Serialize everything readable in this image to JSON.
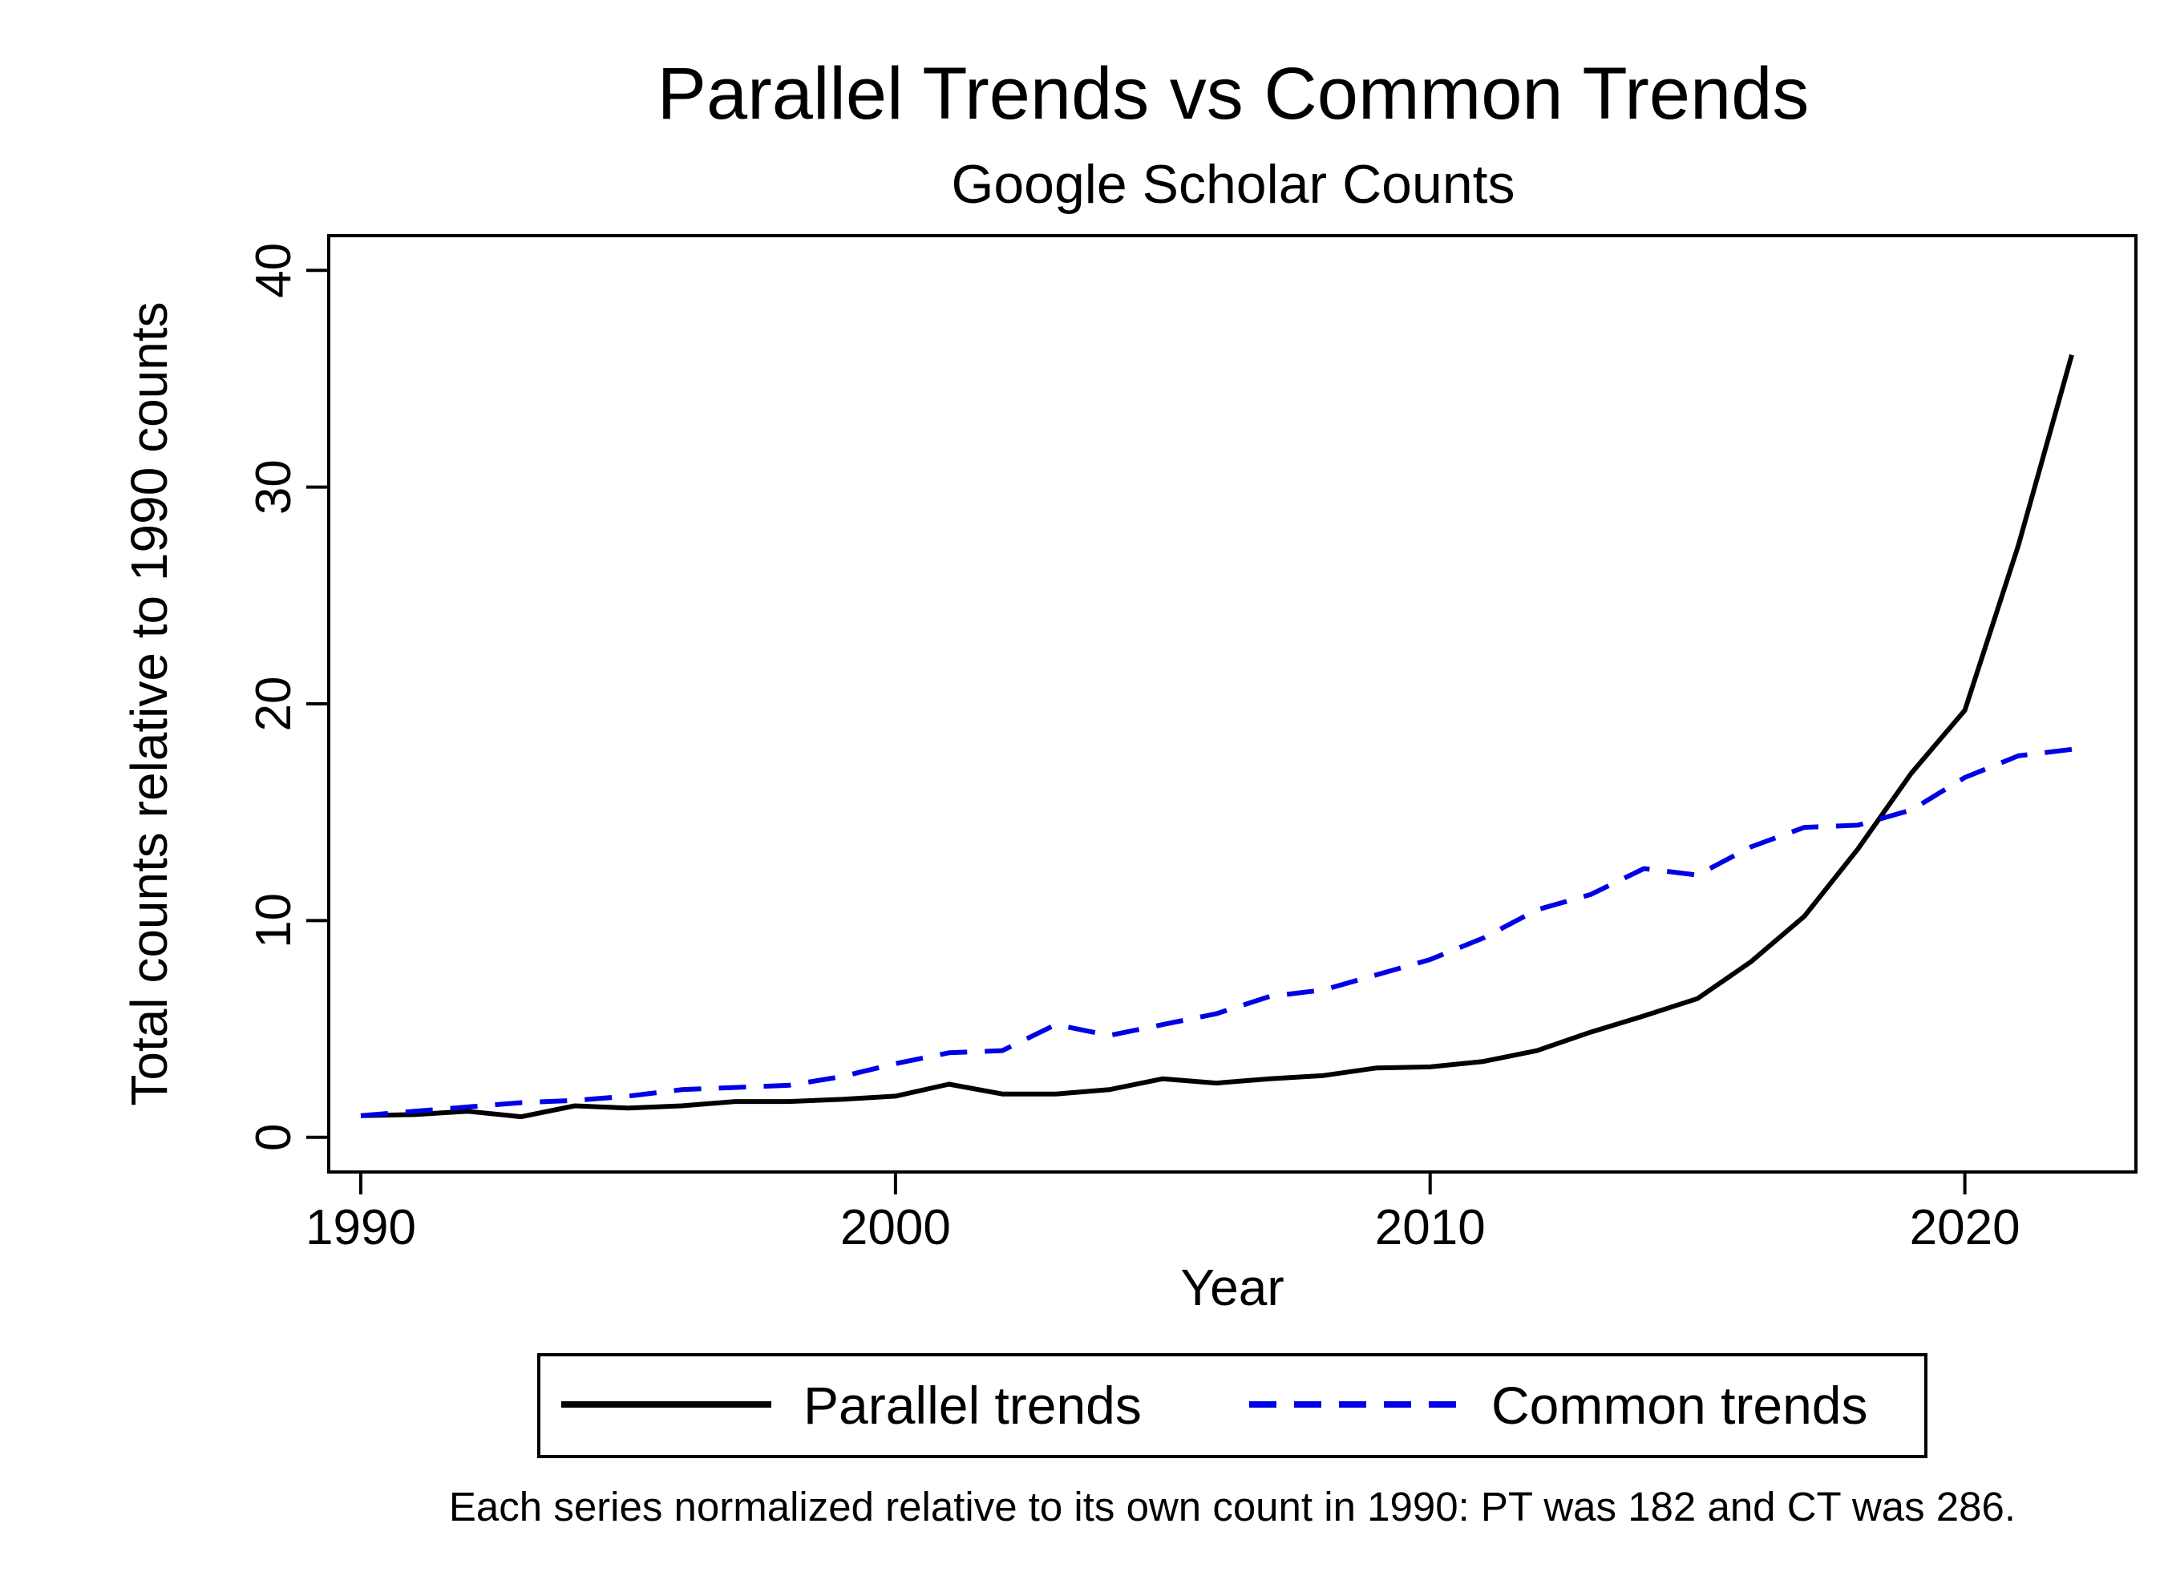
{
  "chart_data": {
    "type": "line",
    "title": "Parallel Trends vs Common Trends",
    "subtitle": "Google Scholar Counts",
    "xlabel": "Year",
    "ylabel": "Total counts relative to 1990 counts",
    "note": "Each series normalized relative to its own count in 1990: PT was 182 and CT was 286.",
    "xlim": [
      1989.4,
      2023.2
    ],
    "ylim": [
      -1.6,
      41.6
    ],
    "x_ticks": [
      1990,
      2000,
      2010,
      2020
    ],
    "y_ticks": [
      0,
      10,
      20,
      30,
      40
    ],
    "grid": false,
    "legend_position": "bottom",
    "x": [
      1990,
      1991,
      1992,
      1993,
      1994,
      1995,
      1996,
      1997,
      1998,
      1999,
      2000,
      2001,
      2002,
      2003,
      2004,
      2005,
      2006,
      2007,
      2008,
      2009,
      2010,
      2011,
      2012,
      2013,
      2014,
      2015,
      2016,
      2017,
      2018,
      2019,
      2020,
      2021,
      2022
    ],
    "series": [
      {
        "name": "Parallel trends",
        "color": "#000000",
        "style": "solid",
        "values": [
          1.0,
          1.05,
          1.2,
          0.95,
          1.45,
          1.35,
          1.45,
          1.65,
          1.65,
          1.75,
          1.9,
          2.45,
          2.0,
          2.0,
          2.2,
          2.7,
          2.5,
          2.7,
          2.85,
          3.2,
          3.25,
          3.5,
          4.0,
          4.85,
          5.6,
          6.4,
          8.1,
          10.2,
          13.3,
          16.8,
          19.7,
          27.3,
          36.1
        ]
      },
      {
        "name": "Common trends",
        "color": "#0000e6",
        "style": "dashed",
        "values": [
          1.0,
          1.2,
          1.4,
          1.6,
          1.7,
          1.9,
          2.2,
          2.3,
          2.4,
          2.8,
          3.4,
          3.9,
          4.0,
          5.2,
          4.7,
          5.2,
          5.7,
          6.5,
          6.8,
          7.5,
          8.2,
          9.2,
          10.5,
          11.2,
          12.4,
          12.1,
          13.4,
          14.3,
          14.4,
          15.1,
          16.6,
          17.6,
          17.9
        ]
      }
    ]
  }
}
